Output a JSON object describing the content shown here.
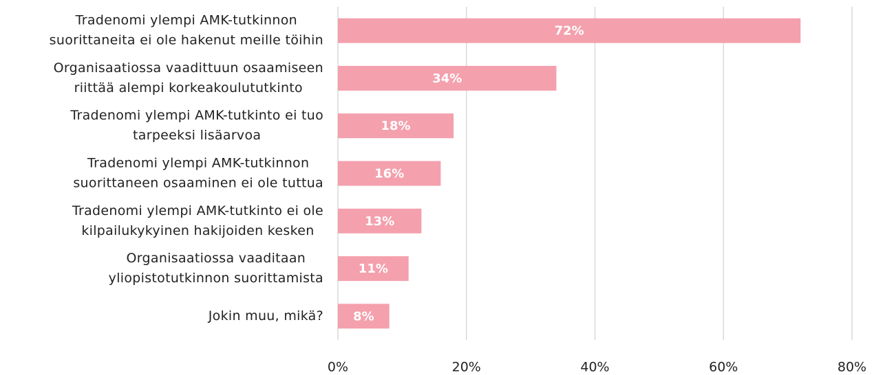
{
  "chart_data": {
    "type": "bar",
    "orientation": "horizontal",
    "categories": [
      [
        "Tradenomi ylempi AMK-tutkinnon",
        "suorittaneita ei ole hakenut meille töihin"
      ],
      [
        "Organisaatiossa vaadittuun osaamiseen",
        "riittää alempi korkeakoulututkinto"
      ],
      [
        "Tradenomi ylempi AMK-tutkinto ei tuo",
        "tarpeeksi lisäarvoa"
      ],
      [
        "Tradenomi ylempi AMK-tutkinnon",
        "suorittaneen osaaminen ei ole tuttua"
      ],
      [
        "Tradenomi ylempi AMK-tutkinto ei ole",
        "kilpailukykyinen hakijoiden kesken"
      ],
      [
        "Organisaatiossa vaaditaan",
        "yliopistotutkinnon suorittamista"
      ],
      [
        "Jokin muu, mikä?"
      ]
    ],
    "values": [
      72,
      34,
      18,
      16,
      13,
      11,
      8
    ],
    "value_labels": [
      "72%",
      "34%",
      "18%",
      "16%",
      "13%",
      "11%",
      "8%"
    ],
    "color": "#f4a0ad",
    "xlim": [
      0,
      80
    ],
    "xticks": [
      {
        "value": 0,
        "label": "0%"
      },
      {
        "value": 20,
        "label": "20%"
      },
      {
        "value": 40,
        "label": "40%"
      },
      {
        "value": 60,
        "label": "60%"
      },
      {
        "value": 80,
        "label": "80%"
      }
    ],
    "grid": true
  }
}
